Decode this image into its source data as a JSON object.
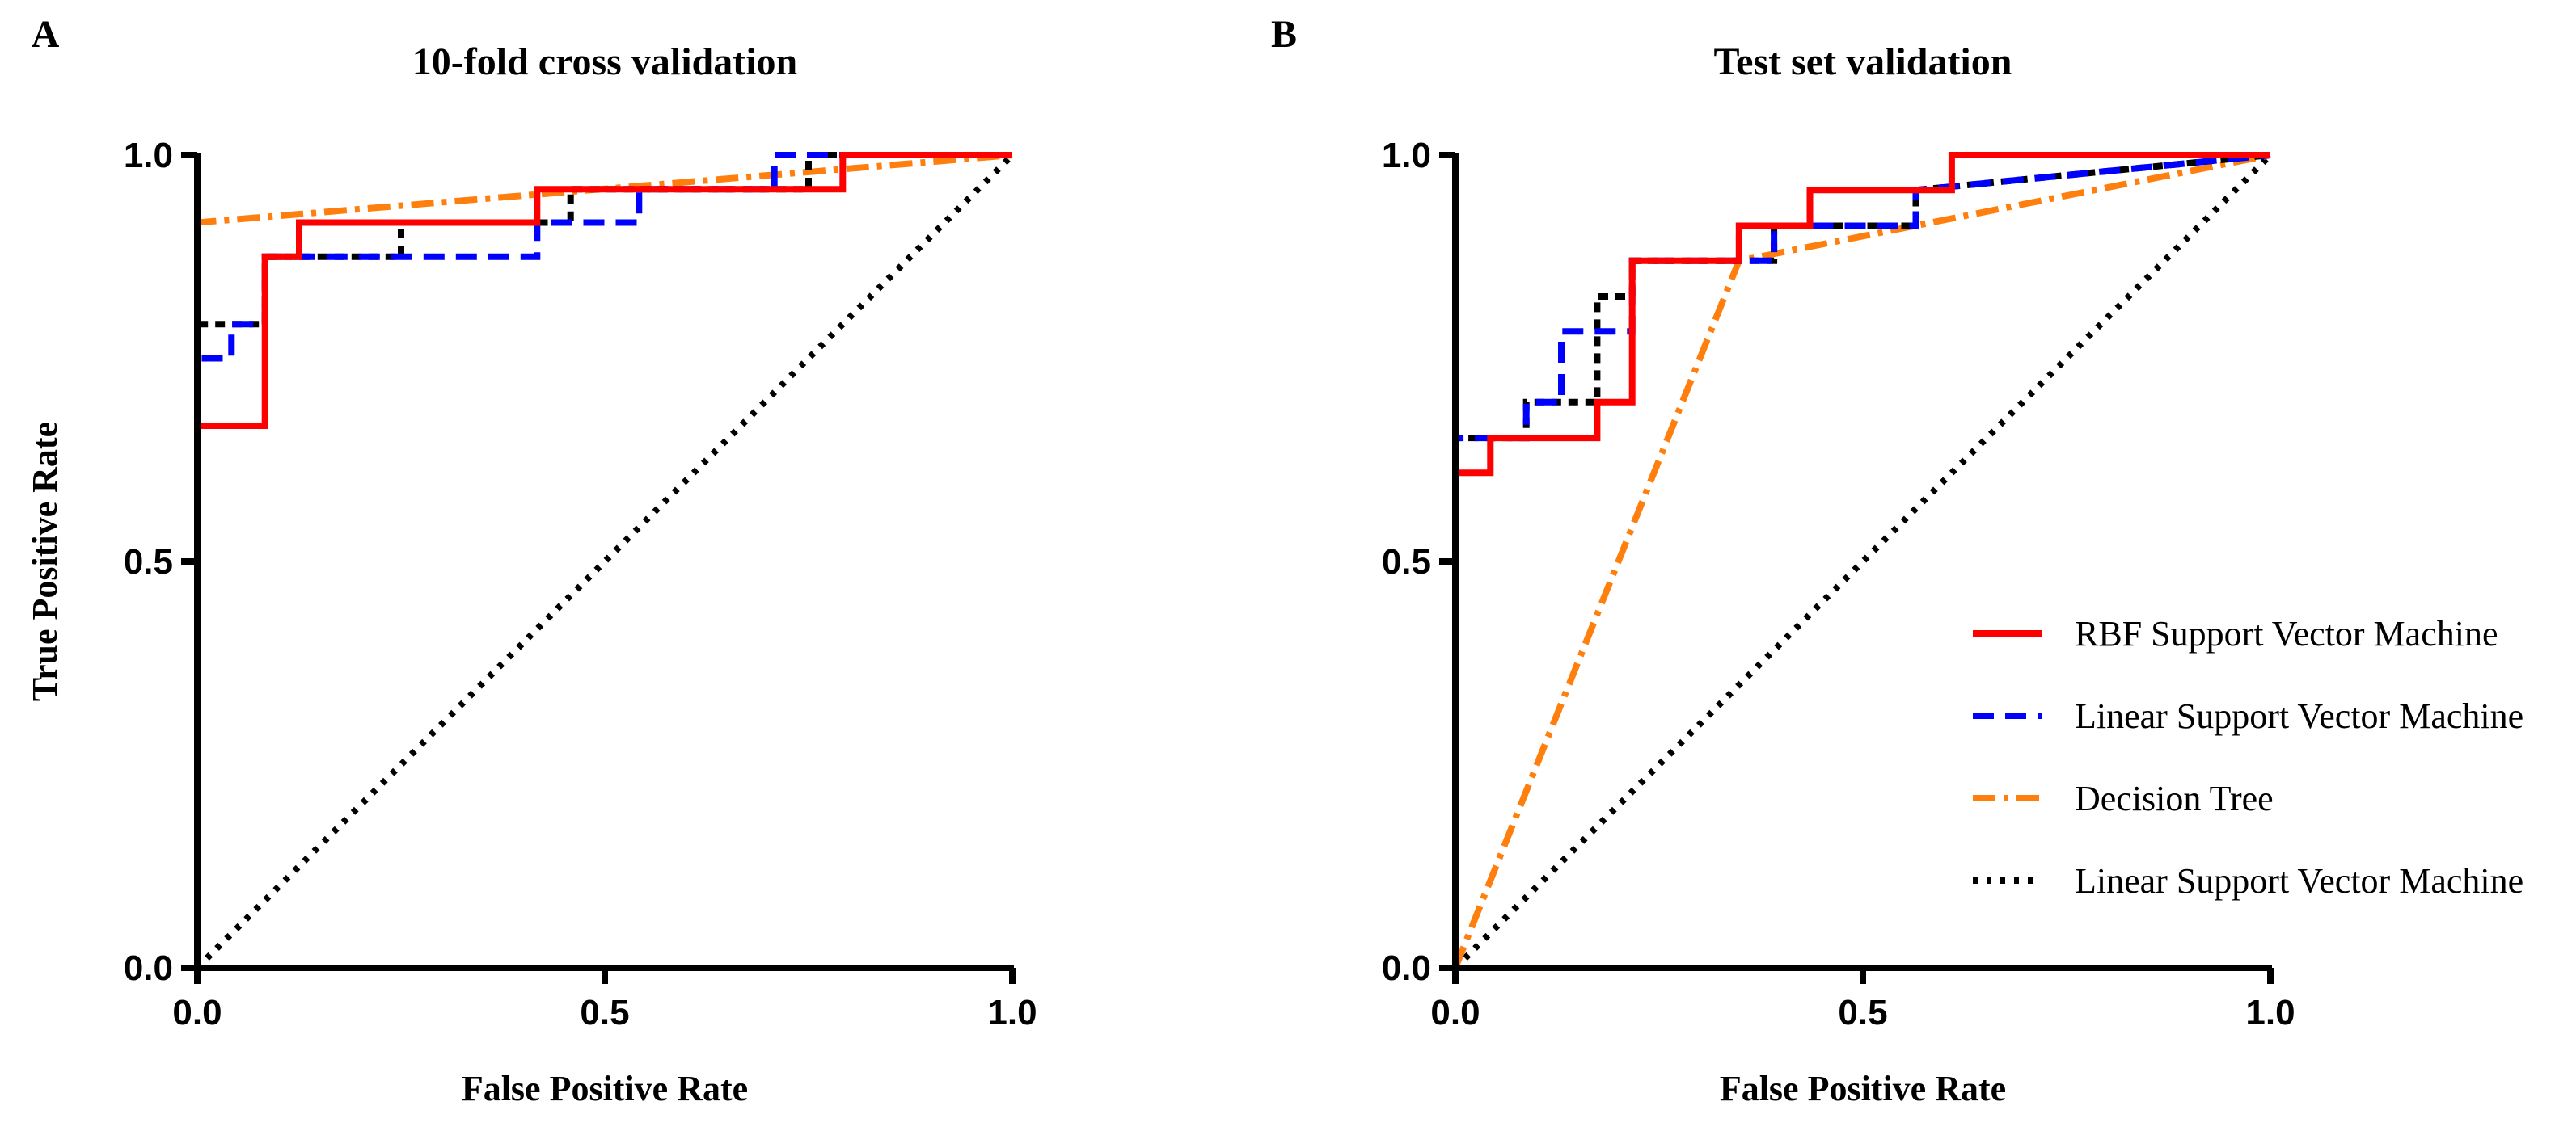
{
  "chart_data": [
    {
      "panel": "A",
      "type": "line",
      "title": "10-fold cross validation",
      "xlabel": "False Positive Rate",
      "ylabel": "True Positive Rate",
      "xlim": [
        0,
        1
      ],
      "ylim": [
        0,
        1
      ],
      "xticks": [
        "0.0",
        "0.5",
        "1.0"
      ],
      "yticks": [
        "0.0",
        "0.5",
        "1.0"
      ],
      "grid": false,
      "series": [
        {
          "name": "Linear Support Vector Machine",
          "role": "chance",
          "color": "#000000",
          "x": [
            0,
            1
          ],
          "y": [
            0,
            1
          ]
        },
        {
          "name": "Decision Tree",
          "color": "#ff7f0e",
          "x": [
            0,
            0,
            1
          ],
          "y": [
            0,
            0.917,
            1
          ]
        },
        {
          "name": "Linear Support Vector Machine",
          "color": "#000000",
          "x": [
            0,
            0,
            0.083,
            0.083,
            0.25,
            0.25,
            0.458,
            0.458,
            0.75,
            0.75,
            1
          ],
          "y": [
            0,
            0.792,
            0.792,
            0.875,
            0.875,
            0.917,
            0.917,
            0.958,
            0.958,
            1,
            1
          ]
        },
        {
          "name": "Linear Support Vector Machine",
          "color": "#0000ff",
          "x": [
            0,
            0,
            0.042,
            0.042,
            0.083,
            0.083,
            0.417,
            0.417,
            0.542,
            0.542,
            0.708,
            0.708,
            1
          ],
          "y": [
            0,
            0.75,
            0.75,
            0.792,
            0.792,
            0.875,
            0.875,
            0.917,
            0.917,
            0.958,
            0.958,
            1,
            1
          ]
        },
        {
          "name": "RBF Support Vector Machine",
          "color": "#ff0000",
          "x": [
            0,
            0,
            0.083,
            0.083,
            0.125,
            0.125,
            0.417,
            0.417,
            0.792,
            0.792,
            1
          ],
          "y": [
            0,
            0.667,
            0.667,
            0.875,
            0.875,
            0.917,
            0.917,
            0.958,
            0.958,
            1,
            1
          ]
        }
      ]
    },
    {
      "panel": "B",
      "type": "line",
      "title": "Test set validation",
      "xlabel": "False Positive Rate",
      "ylabel": "",
      "xlim": [
        0,
        1
      ],
      "ylim": [
        0,
        1
      ],
      "xticks": [
        "0.0",
        "0.5",
        "1.0"
      ],
      "yticks": [
        "0.0",
        "0.5",
        "1.0"
      ],
      "grid": false,
      "legend_position": "lower-right",
      "legend": [
        {
          "label": "RBF Support Vector Machine",
          "color": "#ff0000",
          "dash": "solid"
        },
        {
          "label": "Linear Support Vector Machine",
          "color": "#0000ff",
          "dash": "dashed"
        },
        {
          "label": "Decision Tree",
          "color": "#ff7f0e",
          "dash": "dashdot"
        },
        {
          "label": "Linear Support Vector Machine",
          "color": "#000000",
          "dash": "dotted"
        }
      ],
      "series": [
        {
          "name": "Linear Support Vector Machine",
          "role": "chance",
          "color": "#000000",
          "x": [
            0,
            1
          ],
          "y": [
            0,
            1
          ]
        },
        {
          "name": "Decision Tree",
          "color": "#ff7f0e",
          "x": [
            0,
            0.348,
            1
          ],
          "y": [
            0,
            0.87,
            1
          ]
        },
        {
          "name": "Linear Support Vector Machine",
          "color": "#000000",
          "x": [
            0,
            0,
            0.087,
            0.087,
            0.174,
            0.174,
            0.217,
            0.217,
            0.348,
            0.348,
            0.391,
            0.391,
            0.565,
            0.565,
            1
          ],
          "y": [
            0,
            0.652,
            0.652,
            0.696,
            0.696,
            0.826,
            0.826,
            0.87,
            0.87,
            0.87,
            0.87,
            0.913,
            0.913,
            0.957,
            1
          ]
        },
        {
          "name": "Linear Support Vector Machine",
          "color": "#0000ff",
          "x": [
            0,
            0,
            0.087,
            0.087,
            0.13,
            0.13,
            0.217,
            0.217,
            0.348,
            0.348,
            0.391,
            0.391,
            0.565,
            0.565,
            1
          ],
          "y": [
            0,
            0.652,
            0.652,
            0.696,
            0.696,
            0.783,
            0.783,
            0.87,
            0.87,
            0.87,
            0.87,
            0.913,
            0.913,
            0.957,
            1
          ]
        },
        {
          "name": "RBF Support Vector Machine",
          "color": "#ff0000",
          "x": [
            0,
            0,
            0.043,
            0.043,
            0.174,
            0.174,
            0.217,
            0.217,
            0.348,
            0.348,
            0.435,
            0.435,
            0.609,
            0.609,
            1
          ],
          "y": [
            0,
            0.609,
            0.609,
            0.652,
            0.652,
            0.696,
            0.696,
            0.87,
            0.87,
            0.913,
            0.913,
            0.957,
            0.957,
            1,
            1
          ]
        }
      ]
    }
  ]
}
